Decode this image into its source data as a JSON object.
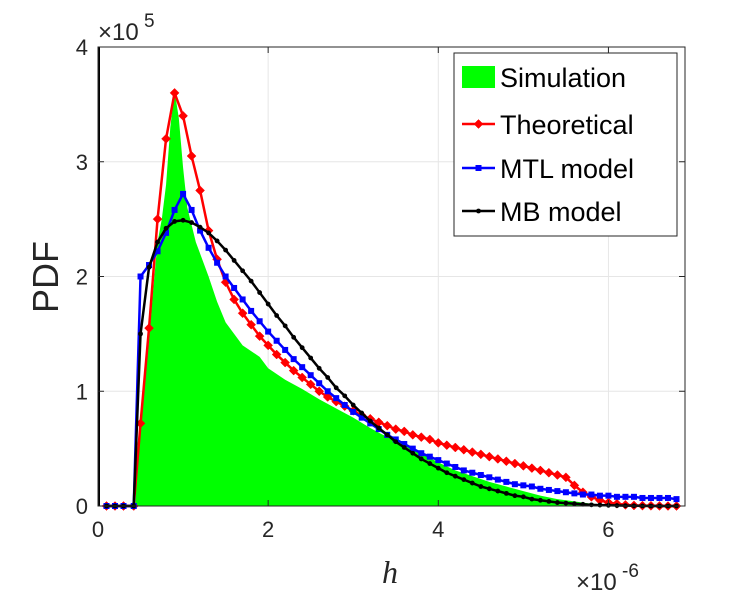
{
  "chart_data": {
    "type": "line",
    "title": "",
    "xlabel": "h",
    "ylabel": "PDF",
    "x_exponent_label": "×10",
    "x_exponent": "-6",
    "y_exponent_label": "×10",
    "y_exponent": "5",
    "xlim": [
      0,
      6.9
    ],
    "ylim": [
      0,
      4
    ],
    "xticks": [
      0,
      2,
      4,
      6
    ],
    "xtick_labels": [
      "0",
      "2",
      "4",
      "6"
    ],
    "yticks": [
      0,
      1,
      2,
      3,
      4
    ],
    "ytick_labels": [
      "0",
      "1",
      "2",
      "3",
      "4"
    ],
    "grid": true,
    "legend_position": "top-right",
    "series": [
      {
        "name": "Simulation",
        "kind": "area",
        "color": "#00ff00",
        "x": [
          0.0,
          0.44,
          0.46,
          0.5,
          0.55,
          0.6,
          0.65,
          0.7,
          0.75,
          0.8,
          0.85,
          0.9,
          0.95,
          1.0,
          1.05,
          1.1,
          1.15,
          1.2,
          1.3,
          1.4,
          1.5,
          1.6,
          1.7,
          1.8,
          1.9,
          2.0,
          2.2,
          2.4,
          2.6,
          2.8,
          3.0,
          3.2,
          3.4,
          3.6,
          3.8,
          4.0,
          4.2,
          4.4,
          4.6,
          4.8,
          5.0,
          5.2,
          5.4,
          5.6,
          5.8,
          6.0,
          6.2,
          6.4,
          6.6,
          6.85
        ],
        "values": [
          0,
          0,
          0.5,
          0.75,
          1.05,
          1.45,
          1.9,
          2.3,
          2.5,
          2.8,
          3.3,
          3.62,
          3.38,
          2.95,
          2.6,
          2.45,
          2.3,
          2.2,
          2.0,
          1.78,
          1.6,
          1.5,
          1.4,
          1.35,
          1.3,
          1.2,
          1.1,
          1.02,
          0.93,
          0.85,
          0.77,
          0.68,
          0.6,
          0.53,
          0.46,
          0.38,
          0.31,
          0.26,
          0.21,
          0.17,
          0.13,
          0.09,
          0.06,
          0.04,
          0.02,
          0.01,
          0.005,
          0.002,
          0.001,
          0
        ]
      },
      {
        "name": "Theoretical",
        "kind": "line",
        "color": "#ff0000",
        "marker": "diamond",
        "x": [
          0.1,
          0.2,
          0.3,
          0.42,
          0.5,
          0.6,
          0.7,
          0.8,
          0.9,
          1.0,
          1.1,
          1.2,
          1.3,
          1.4,
          1.5,
          1.6,
          1.7,
          1.8,
          1.9,
          2.0,
          2.1,
          2.2,
          2.3,
          2.4,
          2.5,
          2.6,
          2.7,
          2.8,
          2.9,
          3.0,
          3.1,
          3.2,
          3.3,
          3.4,
          3.5,
          3.6,
          3.7,
          3.8,
          3.9,
          4.0,
          4.1,
          4.2,
          4.3,
          4.4,
          4.5,
          4.6,
          4.7,
          4.8,
          4.9,
          5.0,
          5.1,
          5.2,
          5.3,
          5.4,
          5.5,
          5.6,
          5.7,
          5.8,
          5.9,
          6.0,
          6.1,
          6.2,
          6.3,
          6.4,
          6.5,
          6.6,
          6.7,
          6.8
        ],
        "values": [
          0.0,
          0.0,
          0.0,
          0.0,
          0.72,
          1.55,
          2.5,
          3.2,
          3.6,
          3.4,
          3.05,
          2.75,
          2.4,
          2.15,
          1.95,
          1.8,
          1.68,
          1.58,
          1.48,
          1.4,
          1.32,
          1.25,
          1.18,
          1.12,
          1.06,
          1.0,
          0.95,
          0.91,
          0.87,
          0.83,
          0.79,
          0.76,
          0.73,
          0.7,
          0.67,
          0.65,
          0.62,
          0.6,
          0.58,
          0.55,
          0.53,
          0.51,
          0.49,
          0.47,
          0.45,
          0.43,
          0.41,
          0.39,
          0.37,
          0.35,
          0.33,
          0.31,
          0.29,
          0.27,
          0.25,
          0.18,
          0.12,
          0.08,
          0.05,
          0.03,
          0.02,
          0.01,
          0.005,
          0.003,
          0.002,
          0.001,
          0.0,
          0.0
        ]
      },
      {
        "name": "MTL model",
        "kind": "line",
        "color": "#0000ff",
        "marker": "square",
        "x": [
          0.1,
          0.2,
          0.3,
          0.42,
          0.5,
          0.6,
          0.7,
          0.8,
          0.9,
          1.0,
          1.1,
          1.2,
          1.3,
          1.4,
          1.5,
          1.6,
          1.7,
          1.8,
          1.9,
          2.0,
          2.1,
          2.2,
          2.3,
          2.4,
          2.5,
          2.6,
          2.7,
          2.8,
          2.9,
          3.0,
          3.1,
          3.2,
          3.3,
          3.4,
          3.5,
          3.6,
          3.7,
          3.8,
          3.9,
          4.0,
          4.1,
          4.2,
          4.3,
          4.4,
          4.5,
          4.6,
          4.7,
          4.8,
          4.9,
          5.0,
          5.1,
          5.2,
          5.3,
          5.4,
          5.5,
          5.6,
          5.7,
          5.8,
          5.9,
          6.0,
          6.1,
          6.2,
          6.3,
          6.4,
          6.5,
          6.6,
          6.7,
          6.8
        ],
        "values": [
          0.0,
          0.0,
          0.0,
          0.0,
          2.0,
          2.1,
          2.22,
          2.38,
          2.58,
          2.72,
          2.58,
          2.4,
          2.25,
          2.12,
          2.0,
          1.9,
          1.8,
          1.7,
          1.61,
          1.52,
          1.44,
          1.36,
          1.28,
          1.21,
          1.14,
          1.07,
          1.0,
          0.94,
          0.88,
          0.82,
          0.77,
          0.72,
          0.67,
          0.62,
          0.58,
          0.54,
          0.5,
          0.46,
          0.43,
          0.4,
          0.37,
          0.34,
          0.31,
          0.29,
          0.27,
          0.25,
          0.23,
          0.21,
          0.19,
          0.18,
          0.17,
          0.15,
          0.14,
          0.13,
          0.12,
          0.11,
          0.1,
          0.1,
          0.09,
          0.09,
          0.08,
          0.08,
          0.08,
          0.07,
          0.07,
          0.07,
          0.07,
          0.06
        ]
      },
      {
        "name": "MB model",
        "kind": "line",
        "color": "#000000",
        "marker": "dot",
        "x": [
          0.1,
          0.2,
          0.3,
          0.42,
          0.5,
          0.6,
          0.7,
          0.8,
          0.9,
          1.0,
          1.1,
          1.2,
          1.3,
          1.4,
          1.5,
          1.6,
          1.7,
          1.8,
          1.9,
          2.0,
          2.1,
          2.2,
          2.3,
          2.4,
          2.5,
          2.6,
          2.7,
          2.8,
          2.9,
          3.0,
          3.1,
          3.2,
          3.3,
          3.4,
          3.5,
          3.6,
          3.7,
          3.8,
          3.9,
          4.0,
          4.1,
          4.2,
          4.3,
          4.4,
          4.5,
          4.6,
          4.7,
          4.8,
          4.9,
          5.0,
          5.1,
          5.2,
          5.3,
          5.4,
          5.5,
          5.6,
          5.7,
          5.8,
          5.9,
          6.0,
          6.1,
          6.2,
          6.3,
          6.4,
          6.5,
          6.6,
          6.7,
          6.8
        ],
        "values": [
          0.0,
          0.0,
          0.0,
          0.0,
          1.5,
          2.08,
          2.3,
          2.42,
          2.48,
          2.49,
          2.47,
          2.43,
          2.38,
          2.31,
          2.23,
          2.14,
          2.05,
          1.96,
          1.86,
          1.76,
          1.66,
          1.57,
          1.47,
          1.38,
          1.29,
          1.2,
          1.12,
          1.03,
          0.96,
          0.88,
          0.81,
          0.74,
          0.68,
          0.62,
          0.56,
          0.51,
          0.46,
          0.41,
          0.37,
          0.33,
          0.29,
          0.26,
          0.23,
          0.2,
          0.17,
          0.15,
          0.13,
          0.11,
          0.09,
          0.08,
          0.06,
          0.05,
          0.04,
          0.03,
          0.025,
          0.02,
          0.015,
          0.01,
          0.008,
          0.006,
          0.004,
          0.003,
          0.002,
          0.001,
          0.0,
          0.0,
          0.0,
          0.0
        ]
      }
    ]
  }
}
